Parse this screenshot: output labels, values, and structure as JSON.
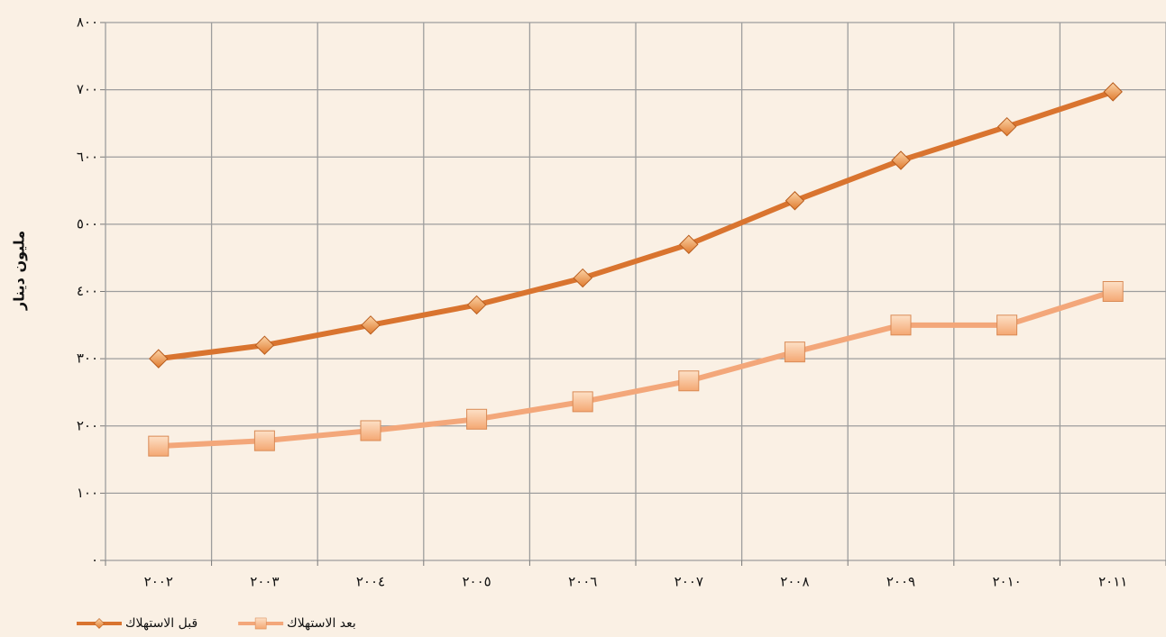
{
  "chart_data": {
    "type": "line",
    "y_label": "مليون دينار",
    "categories": [
      "٢٠٠٢",
      "٢٠٠٣",
      "٢٠٠٤",
      "٢٠٠٥",
      "٢٠٠٦",
      "٢٠٠٧",
      "٢٠٠٨",
      "٢٠٠٩",
      "٢٠١٠",
      "٢٠١١"
    ],
    "series": [
      {
        "name": "قبل الاستهلاك",
        "color": "#d9742f",
        "marker": "diamond",
        "values": [
          300,
          320,
          350,
          380,
          420,
          470,
          535,
          595,
          645,
          697
        ]
      },
      {
        "name": "بعد الاستهلاك",
        "color": "#f3a77a",
        "marker": "square",
        "values": [
          170,
          178,
          193,
          210,
          236,
          267,
          310,
          350,
          350,
          400
        ]
      }
    ],
    "ylim": [
      0,
      800
    ],
    "yticks": [
      {
        "value": 0,
        "label": "٠"
      },
      {
        "value": 100,
        "label": "١٠٠"
      },
      {
        "value": 200,
        "label": "٢٠٠"
      },
      {
        "value": 300,
        "label": "٣٠٠"
      },
      {
        "value": 400,
        "label": "٤٠٠"
      },
      {
        "value": 500,
        "label": "٥٠٠"
      },
      {
        "value": 600,
        "label": "٦٠٠"
      },
      {
        "value": 700,
        "label": "٧٠٠"
      },
      {
        "value": 800,
        "label": "٨٠٠"
      }
    ],
    "grid": true,
    "legend": "bottom-left"
  }
}
